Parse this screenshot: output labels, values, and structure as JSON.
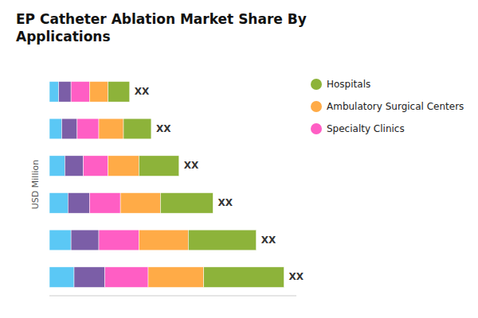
{
  "chart_data": {
    "type": "bar",
    "orientation": "horizontal",
    "stacked": true,
    "title": "EP Catheter Ablation Market Share By\nApplications",
    "ylabel": "USD Million",
    "categories": [
      null,
      null,
      null,
      null,
      null,
      null
    ],
    "series": [
      {
        "color": "#5BC8F5",
        "values": [
          8,
          7,
          6,
          5,
          4,
          3
        ]
      },
      {
        "color": "#7B5EA7",
        "values": [
          10,
          9,
          7,
          6,
          5,
          4
        ]
      },
      {
        "name": "Specialty Clinics",
        "color": "#FF5EC4",
        "values": [
          14,
          13,
          10,
          8,
          7,
          6
        ]
      },
      {
        "name": "Ambulatory Surgical Centers",
        "color": "#FFAB47",
        "values": [
          18,
          16,
          13,
          10,
          8,
          6
        ]
      },
      {
        "name": "Hospitals",
        "color": "#8DB33A",
        "values": [
          26,
          22,
          17,
          13,
          9,
          7
        ]
      }
    ],
    "xlim": [
      0,
      80
    ],
    "annotations": [
      "XX",
      "XX",
      "XX",
      "XX",
      "XX",
      "XX"
    ],
    "tick_labels": false,
    "grid": false,
    "legend": "upper right"
  }
}
